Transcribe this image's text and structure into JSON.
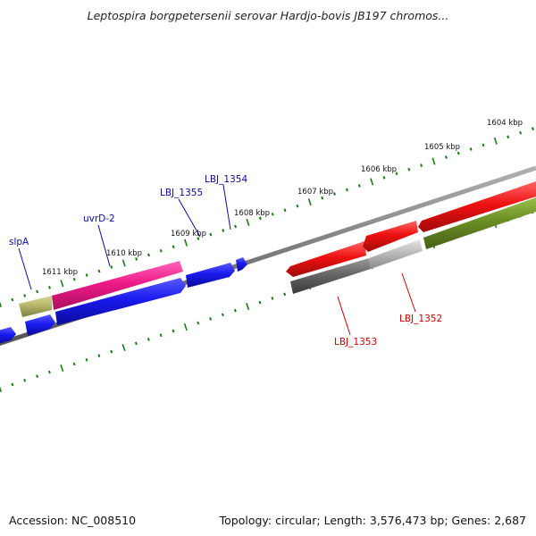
{
  "title": "Leptospira borgpetersenii serovar Hardjo-bovis JB197 chromos...",
  "footer": {
    "accession": "Accession: NC_008510",
    "topology": "Topology: circular; Length: 3,576,473 bp; Genes: 2,687"
  },
  "ticks": [
    {
      "label": "1604 kbp"
    },
    {
      "label": "1605 kbp"
    },
    {
      "label": "1606 kbp"
    },
    {
      "label": "1607 kbp"
    },
    {
      "label": "1608 kbp"
    },
    {
      "label": "1609 kbp"
    },
    {
      "label": "1610 kbp"
    },
    {
      "label": "1611 kbp"
    }
  ],
  "gene_labels": {
    "slpA": "slpA",
    "uvrD2": "uvrD-2",
    "lbj1355": "LBJ_1355",
    "lbj1354": "LBJ_1354",
    "lbj1353": "LBJ_1353",
    "lbj1352": "LBJ_1352"
  },
  "colors": {
    "blue": "#1a1aee",
    "pink": "#ee1a88",
    "red": "#ee1111",
    "olive": "#6b8e23",
    "khaki": "#b5b56a",
    "gray": "#666666",
    "lightgray": "#bbbbbb",
    "tick": "#1a7a1a",
    "label_blue": "#0a0aa0",
    "label_red": "#cc0000"
  }
}
